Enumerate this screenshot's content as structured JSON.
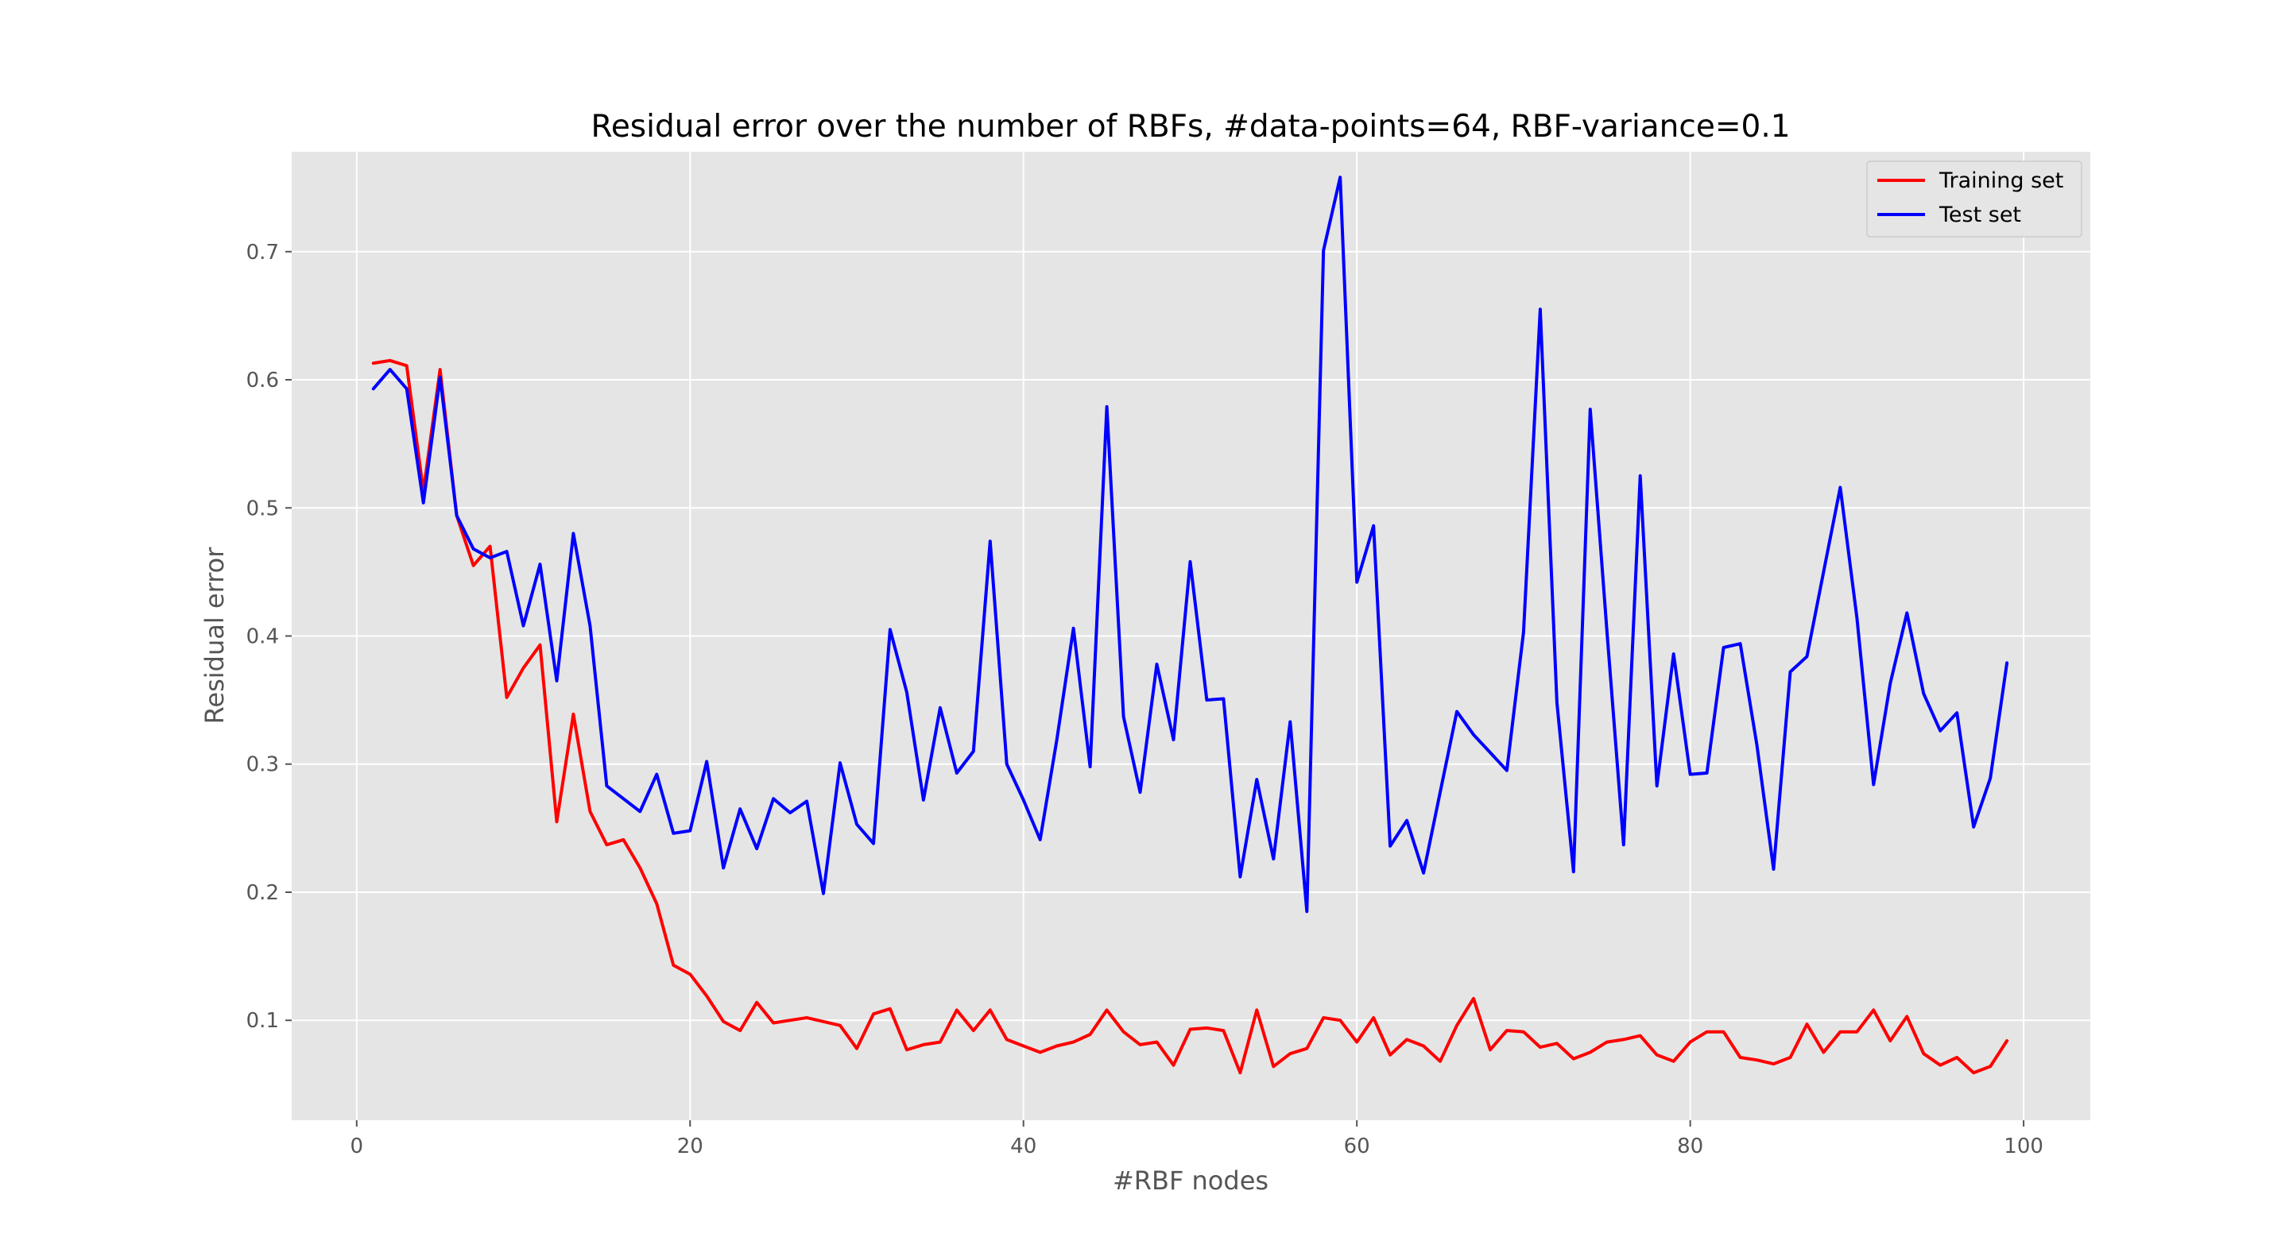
{
  "chart_data": {
    "type": "line",
    "title": "Residual error over the number of RBFs, #data-points=64, RBF-variance=0.1",
    "xlabel": "#RBF nodes",
    "ylabel": "Residual error",
    "xlim": [
      -3.9,
      104
    ],
    "ylim": [
      0.022,
      0.778
    ],
    "xticks": [
      0,
      20,
      40,
      60,
      80,
      100
    ],
    "yticks": [
      0.1,
      0.2,
      0.3,
      0.4,
      0.5,
      0.6,
      0.7
    ],
    "grid": true,
    "legend_position": "top-right",
    "x": [
      1,
      2,
      3,
      4,
      5,
      6,
      7,
      8,
      9,
      10,
      11,
      12,
      13,
      14,
      15,
      16,
      17,
      18,
      19,
      20,
      21,
      22,
      23,
      24,
      25,
      26,
      27,
      28,
      29,
      30,
      31,
      32,
      33,
      34,
      35,
      36,
      37,
      38,
      39,
      40,
      41,
      42,
      43,
      44,
      45,
      46,
      47,
      48,
      49,
      50,
      51,
      52,
      53,
      54,
      55,
      56,
      57,
      58,
      59,
      60,
      61,
      62,
      63,
      64,
      65,
      66,
      67,
      68,
      69,
      70,
      71,
      72,
      73,
      74,
      75,
      76,
      77,
      78,
      79,
      80,
      81,
      82,
      83,
      84,
      85,
      86,
      87,
      88,
      89,
      90,
      91,
      92,
      93,
      94,
      95,
      96,
      97,
      98,
      99
    ],
    "series": [
      {
        "name": "Training set",
        "color": "#ff0000",
        "values": [
          0.613,
          0.615,
          0.611,
          0.513,
          0.608,
          0.494,
          0.455,
          0.47,
          0.352,
          0.375,
          0.393,
          0.255,
          0.339,
          0.263,
          0.237,
          0.241,
          0.219,
          0.191,
          0.143,
          0.136,
          0.119,
          0.099,
          0.092,
          0.114,
          0.098,
          0.1,
          0.102,
          0.099,
          0.096,
          0.078,
          0.105,
          0.109,
          0.077,
          0.081,
          0.083,
          0.108,
          0.092,
          0.108,
          0.085,
          0.08,
          0.075,
          0.08,
          0.083,
          0.089,
          0.108,
          0.091,
          0.081,
          0.083,
          0.065,
          0.093,
          0.094,
          0.092,
          0.059,
          0.108,
          0.064,
          0.074,
          0.078,
          0.102,
          0.1,
          0.083,
          0.102,
          0.073,
          0.085,
          0.08,
          0.068,
          0.096,
          0.117,
          0.077,
          0.092,
          0.091,
          0.079,
          0.082,
          0.07,
          0.075,
          0.083,
          0.085,
          0.088,
          0.073,
          0.068,
          0.083,
          0.091,
          0.091,
          0.071,
          0.069,
          0.066,
          0.071,
          0.097,
          0.075,
          0.091,
          0.091,
          0.108,
          0.084,
          0.103,
          0.074,
          0.065,
          0.071,
          0.059,
          0.064,
          0.084
        ]
      },
      {
        "name": "Test set",
        "color": "#0000ff",
        "values": [
          0.593,
          0.608,
          0.593,
          0.504,
          0.602,
          0.494,
          0.468,
          0.461,
          0.466,
          0.408,
          0.456,
          0.365,
          0.48,
          0.408,
          0.283,
          0.273,
          0.263,
          0.292,
          0.246,
          0.248,
          0.302,
          0.219,
          0.265,
          0.234,
          0.273,
          0.262,
          0.271,
          0.199,
          0.301,
          0.253,
          0.238,
          0.405,
          0.356,
          0.272,
          0.344,
          0.293,
          0.31,
          0.474,
          0.3,
          0.272,
          0.241,
          0.319,
          0.406,
          0.298,
          0.579,
          0.337,
          0.278,
          0.378,
          0.319,
          0.458,
          0.35,
          0.351,
          0.212,
          0.288,
          0.226,
          0.333,
          0.185,
          0.701,
          0.758,
          0.442,
          0.486,
          0.236,
          0.256,
          0.215,
          0.278,
          0.341,
          0.323,
          0.309,
          0.295,
          0.403,
          0.655,
          0.348,
          0.216,
          0.577,
          0.404,
          0.237,
          0.525,
          0.283,
          0.386,
          0.292,
          0.293,
          0.391,
          0.394,
          0.315,
          0.218,
          0.372,
          0.384,
          0.45,
          0.516,
          0.414,
          0.284,
          0.363,
          0.418,
          0.355,
          0.326,
          0.34,
          0.251,
          0.289,
          0.379
        ]
      }
    ]
  }
}
